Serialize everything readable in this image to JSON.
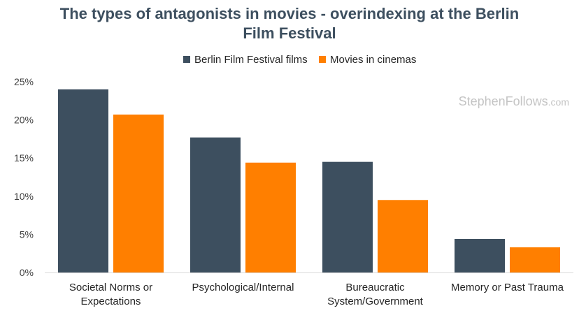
{
  "chart_data": {
    "type": "bar",
    "title_lines": [
      "The types of antagonists in movies - overindexing at the Berlin",
      "Film Festival"
    ],
    "categories": [
      [
        "Societal Norms or",
        "Expectations"
      ],
      [
        "Psychological/Internal"
      ],
      [
        "Bureaucratic",
        "System/Government"
      ],
      [
        "Memory or Past Trauma"
      ]
    ],
    "series": [
      {
        "name": "Berlin Film Festival films",
        "color": "#3d4f5f",
        "values": [
          24.0,
          17.7,
          14.5,
          4.4
        ]
      },
      {
        "name": "Movies in cinemas",
        "color": "#ff7f00",
        "values": [
          20.7,
          14.4,
          9.5,
          3.3
        ]
      }
    ],
    "ylim": [
      0,
      25
    ],
    "yticks": [
      0,
      5,
      10,
      15,
      20,
      25
    ],
    "ytick_labels": [
      "0%",
      "5%",
      "10%",
      "15%",
      "20%",
      "25%"
    ],
    "xlabel": "",
    "ylabel": "",
    "grid": false,
    "legend_position": "top-center",
    "watermark": {
      "main": "StephenFollows",
      "suffix": ".com"
    }
  }
}
